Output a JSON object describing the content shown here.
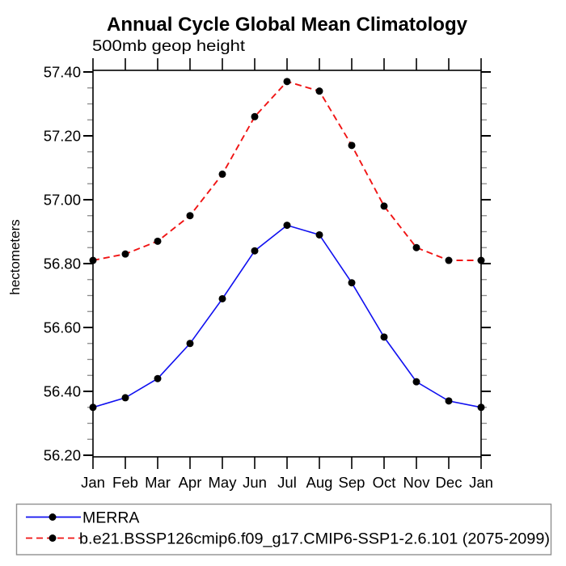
{
  "page": {
    "background": "#ffffff",
    "text_color": "#000000"
  },
  "chart_data": {
    "type": "line",
    "title": "Annual Cycle Global Mean Climatology",
    "subtitle": "500mb geop height",
    "ylabel": "hectometers",
    "xlabel": "",
    "categories": [
      "Jan",
      "Feb",
      "Mar",
      "Apr",
      "May",
      "Jun",
      "Jul",
      "Aug",
      "Sep",
      "Oct",
      "Nov",
      "Dec",
      "Jan"
    ],
    "series": [
      {
        "name": "MERRA",
        "line_color": "#1010f0",
        "line_style": "solid",
        "marker": "filled-circle",
        "marker_color": "#000000",
        "values": [
          56.35,
          56.38,
          56.44,
          56.55,
          56.69,
          56.84,
          56.92,
          56.89,
          56.74,
          56.57,
          56.43,
          56.37,
          56.35
        ]
      },
      {
        "name": "b.e21.BSSP126cmip6.f09_g17.CMIP6-SSP1-2.6.101 (2075-2099)",
        "line_color": "#f01414",
        "line_style": "dashed",
        "marker": "filled-circle",
        "marker_color": "#000000",
        "values": [
          56.81,
          56.83,
          56.87,
          56.95,
          57.08,
          57.26,
          57.37,
          57.34,
          57.17,
          56.98,
          56.85,
          56.81,
          56.81
        ]
      }
    ],
    "ylim": [
      56.2,
      57.4
    ],
    "ytick_step": 0.2,
    "yminor_step": 0.05,
    "ytick_format_decimals": 2,
    "grid": false,
    "legend_position": "bottom-left-box",
    "axis_color": "#000000",
    "minor_tick_color": "#8a8a8a",
    "legend_border_color": "#909090"
  }
}
